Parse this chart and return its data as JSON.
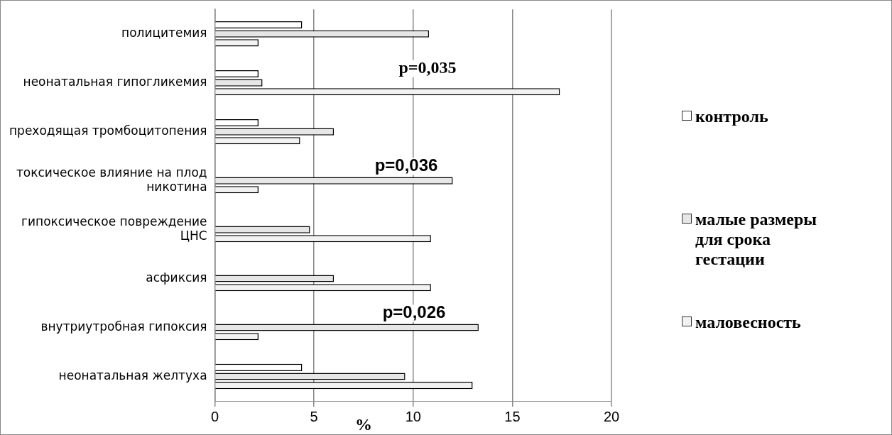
{
  "chart_data": {
    "type": "bar",
    "orientation": "horizontal",
    "xlabel": "%",
    "categories": [
      "полицитемия",
      "неонатальная гипогликемия",
      "преходящая тромбоцитопения",
      "токсическое влияние на плод никотина",
      "гипоксическое повреждение ЦНС",
      "асфиксия",
      "внутриутробная гипоксия",
      "неонатальная желтуха"
    ],
    "series": [
      {
        "name": "контроль",
        "color": "#ffffff",
        "values": [
          4.4,
          2.2,
          2.2,
          null,
          null,
          null,
          null,
          4.4
        ]
      },
      {
        "name": "малые размеры для срока гестации",
        "color": "#e6e6e6",
        "values": [
          10.8,
          2.4,
          6.0,
          12.0,
          4.8,
          6.0,
          13.3,
          9.6
        ]
      },
      {
        "name": "маловесность",
        "color": "#f2f2f2",
        "values": [
          2.2,
          17.4,
          4.3,
          2.2,
          10.9,
          10.9,
          2.2,
          13.0
        ]
      }
    ],
    "xlim": [
      0,
      20
    ],
    "xticks": [
      0,
      5,
      10,
      15,
      20
    ],
    "grid": "x",
    "legend": "right",
    "annotations": [
      "p=0,035",
      "p=0,036",
      "p=0,026"
    ]
  }
}
